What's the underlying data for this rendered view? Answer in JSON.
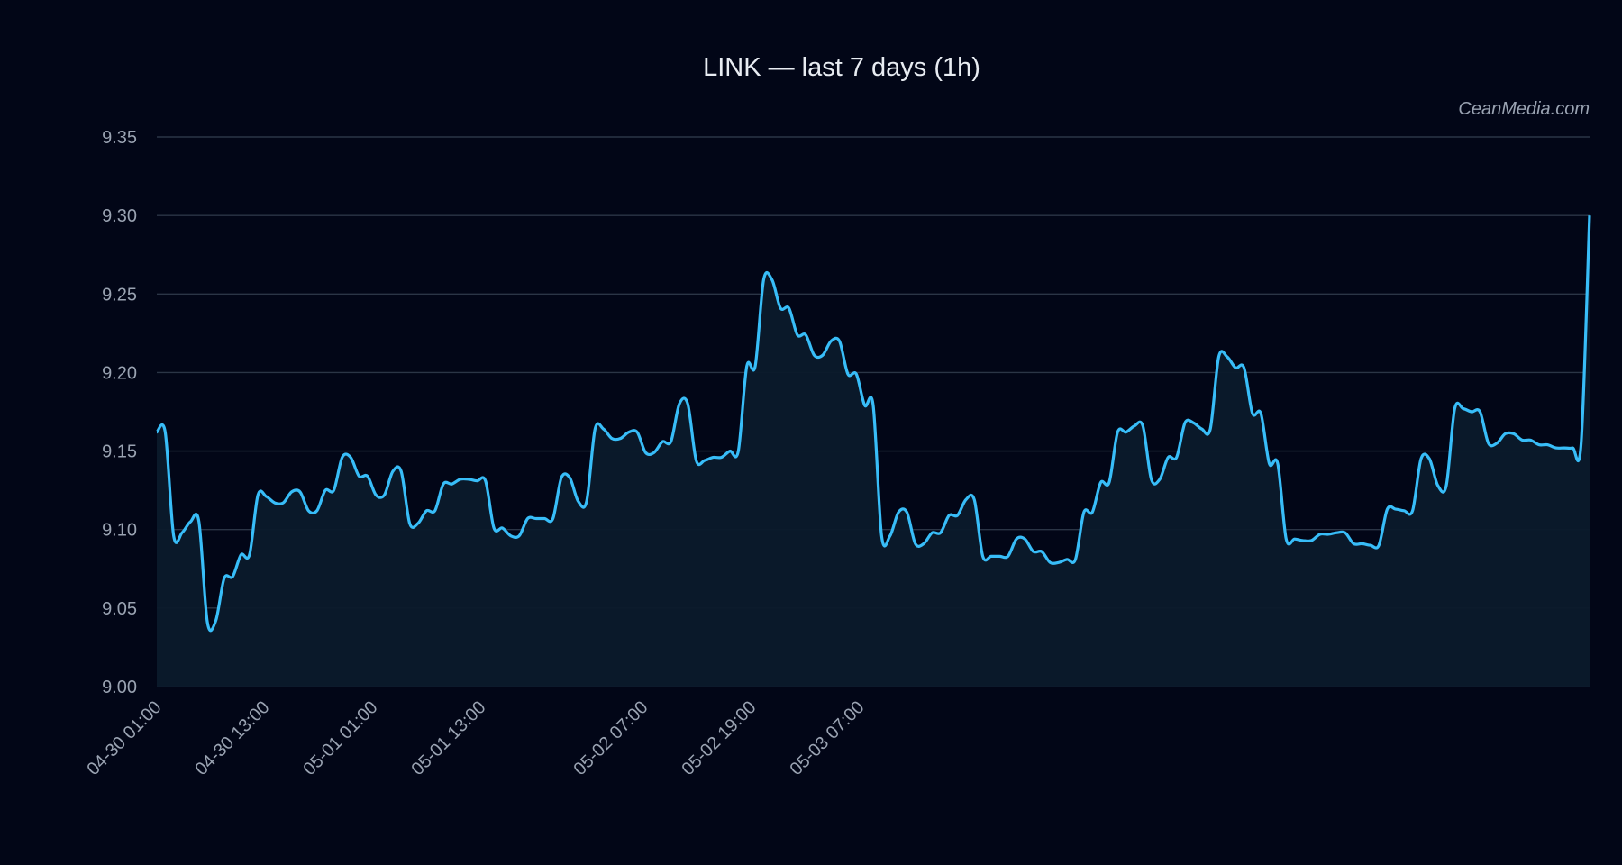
{
  "chart_data": {
    "type": "area",
    "title": "LINK — last 7 days (1h)",
    "watermark": "CeanMedia.com",
    "xlabel": "",
    "ylabel": "",
    "ylim": [
      9.0,
      9.35
    ],
    "yticks": [
      "9.00",
      "9.05",
      "9.10",
      "9.15",
      "9.20",
      "9.25",
      "9.30",
      "9.35"
    ],
    "xticks": [
      "04-30 01:00",
      "04-30 13:00",
      "05-01 01:00",
      "05-01 13:00",
      "05-02 07:00",
      "05-02 19:00",
      "05-03 07:00"
    ],
    "grid": true,
    "legend": "none",
    "colors": {
      "line": "#38bdf8",
      "fill": "#0b1a2b",
      "background": "#020617",
      "grid": "#2b3546"
    },
    "series": [
      {
        "values": [
          9.162,
          9.162,
          9.096,
          9.098,
          9.105,
          9.105,
          9.041,
          9.042,
          9.069,
          9.07,
          9.084,
          9.084,
          9.122,
          9.121,
          9.117,
          9.117,
          9.124,
          9.124,
          9.112,
          9.112,
          9.125,
          9.125,
          9.146,
          9.146,
          9.134,
          9.134,
          9.122,
          9.122,
          9.137,
          9.137,
          9.104,
          9.104,
          9.112,
          9.112,
          9.129,
          9.129,
          9.132,
          9.132,
          9.131,
          9.131,
          9.101,
          9.101,
          9.096,
          9.096,
          9.107,
          9.107,
          9.107,
          9.107,
          9.133,
          9.133,
          9.118,
          9.118,
          9.164,
          9.164,
          9.158,
          9.158,
          9.162,
          9.162,
          9.149,
          9.149,
          9.156,
          9.156,
          9.18,
          9.18,
          9.144,
          9.144,
          9.146,
          9.146,
          9.15,
          9.15,
          9.204,
          9.204,
          9.259,
          9.259,
          9.241,
          9.241,
          9.224,
          9.224,
          9.211,
          9.211,
          9.22,
          9.22,
          9.199,
          9.199,
          9.179,
          9.179,
          9.096,
          9.096,
          9.111,
          9.111,
          9.091,
          9.091,
          9.098,
          9.098,
          9.109,
          9.109,
          9.119,
          9.119,
          9.083,
          9.083,
          9.083,
          9.083,
          9.094,
          9.094,
          9.086,
          9.086,
          9.079,
          9.079,
          9.081,
          9.081,
          9.111,
          9.111,
          9.13,
          9.13,
          9.162,
          9.162,
          9.166,
          9.166,
          9.132,
          9.132,
          9.146,
          9.146,
          9.168,
          9.168,
          9.164,
          9.164,
          9.21,
          9.21,
          9.203,
          9.203,
          9.174,
          9.174,
          9.142,
          9.142,
          9.094,
          9.094,
          9.093,
          9.093,
          9.097,
          9.097,
          9.098,
          9.098,
          9.091,
          9.091,
          9.09,
          9.09,
          9.113,
          9.113,
          9.112,
          9.112,
          9.145,
          9.145,
          9.128,
          9.128,
          9.177,
          9.177,
          9.175,
          9.175,
          9.155,
          9.155,
          9.161,
          9.161,
          9.157,
          9.157,
          9.154,
          9.154,
          9.152,
          9.152,
          9.152,
          9.155,
          9.3
        ]
      }
    ]
  }
}
